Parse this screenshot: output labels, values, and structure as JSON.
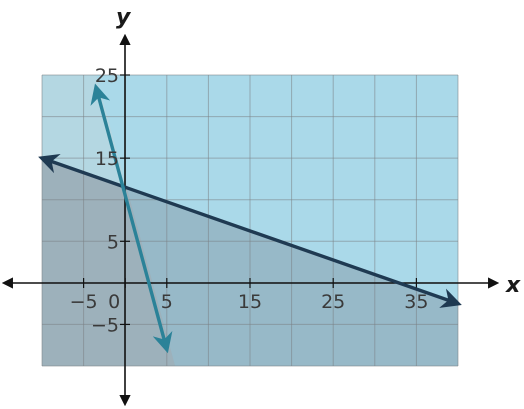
{
  "chart_data": {
    "type": "line",
    "title": "",
    "xlabel": "x",
    "ylabel": "y",
    "xlim": [
      -10,
      40
    ],
    "ylim": [
      -10,
      25
    ],
    "grid": true,
    "grid_step": 5,
    "x_ticks": [
      -5,
      0,
      5,
      15,
      25,
      35
    ],
    "y_ticks": [
      -5,
      5,
      15,
      25
    ],
    "x_tick_labels": [
      "−5",
      "0",
      "5",
      "15",
      "25",
      "35"
    ],
    "y_tick_labels": [
      "−5",
      "5",
      "15",
      "25"
    ],
    "series": [
      {
        "points": [
          [
            -10,
            15
          ],
          [
            40,
            -2.5
          ]
        ],
        "color": "#1f3a52",
        "arrows": "both"
      },
      {
        "points": [
          [
            -3.5,
            23.5
          ],
          [
            5,
            -8
          ]
        ],
        "color": "#2b8298",
        "arrows": "both"
      }
    ],
    "regions": [
      {
        "points": [
          [
            -10,
            25
          ],
          [
            40,
            25
          ],
          [
            40,
            -2.5
          ],
          [
            -10,
            15
          ]
        ],
        "color": "#aed9e8",
        "opacity": 0.75
      },
      {
        "points": [
          [
            -10,
            15
          ],
          [
            40,
            -2.5
          ],
          [
            40,
            -10
          ],
          [
            -10,
            -10
          ]
        ],
        "color": "#7d8e9a",
        "opacity": 0.75
      },
      {
        "points": [
          [
            -3.5,
            25
          ],
          [
            40,
            25
          ],
          [
            40,
            -10
          ],
          [
            6,
            -10
          ]
        ],
        "color": "#8fcde2",
        "opacity": 0.45
      },
      {
        "points": [
          [
            -10,
            25
          ],
          [
            -3.5,
            25
          ],
          [
            6,
            -10
          ],
          [
            -10,
            -10
          ]
        ],
        "color": "#9bbfcc",
        "opacity": 0.35
      }
    ]
  }
}
